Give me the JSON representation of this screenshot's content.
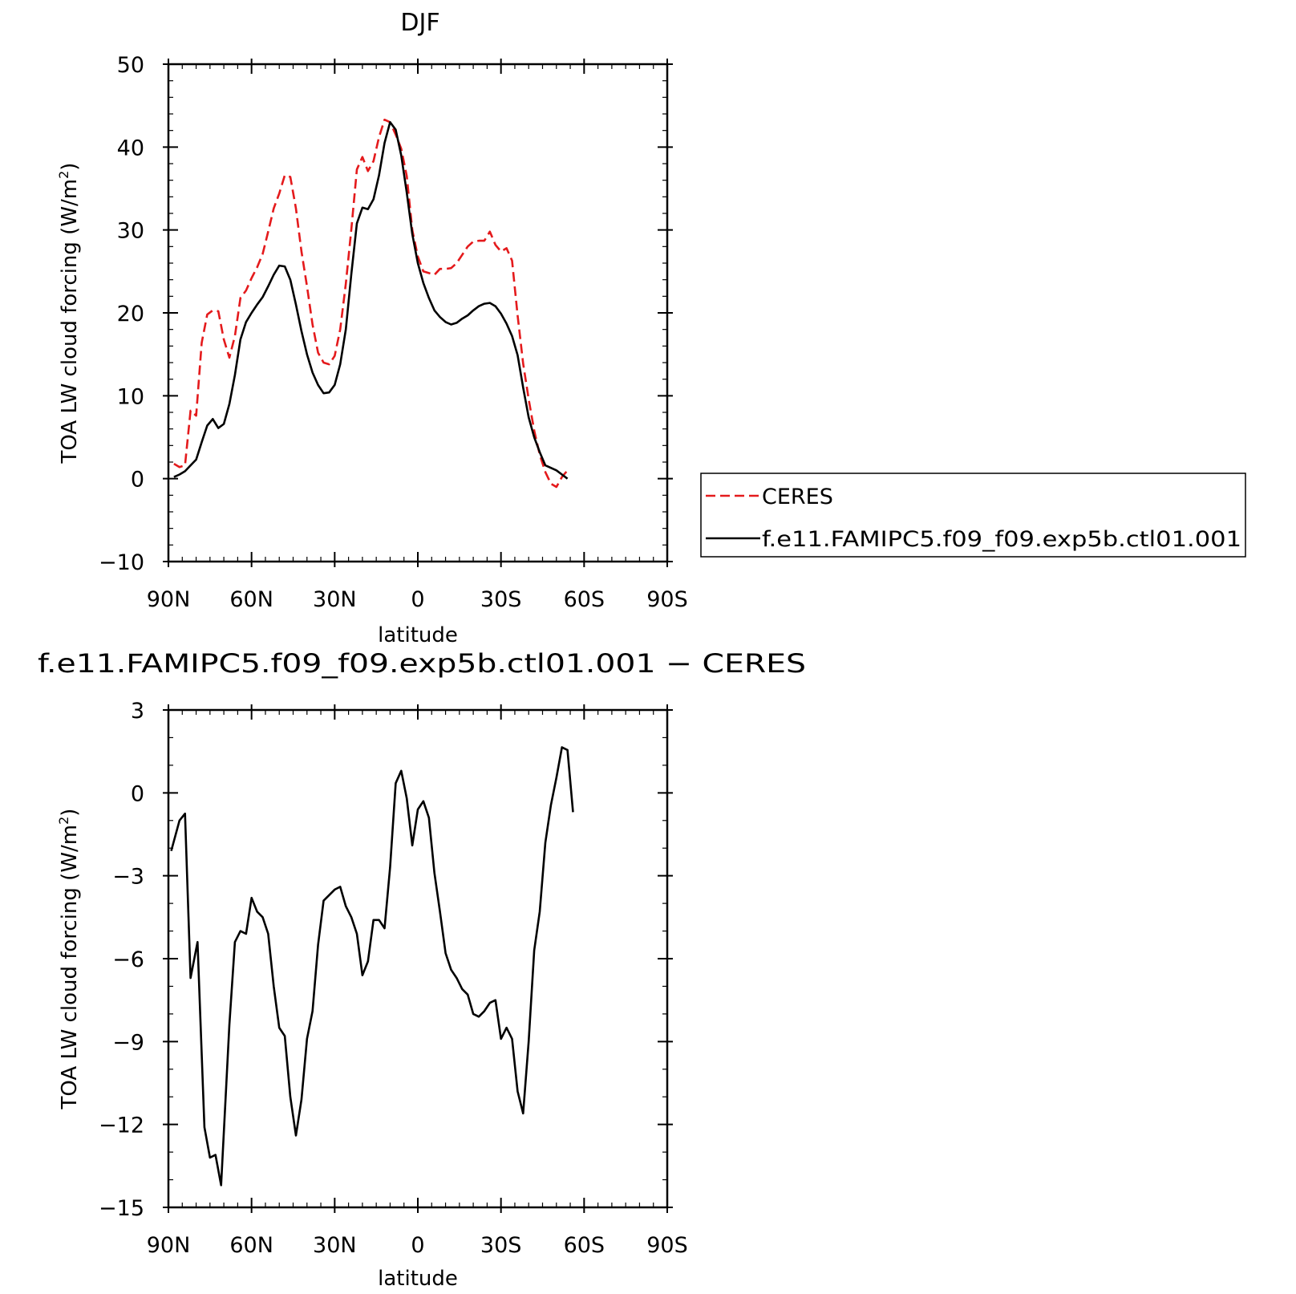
{
  "chart_data": [
    {
      "type": "line",
      "title": "DJF",
      "xlabel": "latitude",
      "ylabel": "TOA LW cloud forcing (W/m",
      "ylabel_sup": "2",
      "ylabel_close": ")",
      "xlim": [
        -90,
        90
      ],
      "ylim": [
        -10,
        50
      ],
      "xticks": [
        {
          "value": -90,
          "label": "90N"
        },
        {
          "value": -60,
          "label": "60N"
        },
        {
          "value": -30,
          "label": "30N"
        },
        {
          "value": 0,
          "label": "0"
        },
        {
          "value": 30,
          "label": "30S"
        },
        {
          "value": 60,
          "label": "60S"
        },
        {
          "value": 90,
          "label": "90S"
        }
      ],
      "yticks": [
        {
          "value": -10,
          "label": "−10"
        },
        {
          "value": 0,
          "label": "0"
        },
        {
          "value": 10,
          "label": "10"
        },
        {
          "value": 20,
          "label": "20"
        },
        {
          "value": 30,
          "label": "30"
        },
        {
          "value": 40,
          "label": "40"
        },
        {
          "value": 50,
          "label": "50"
        }
      ],
      "legend": {
        "position": "right"
      },
      "series": [
        {
          "name": "CERES",
          "color": "#e41a1c",
          "dash": true,
          "points": [
            [
              -88,
              1.8
            ],
            [
              -86,
              1.4
            ],
            [
              -84,
              1.6
            ],
            [
              -82,
              8.2
            ],
            [
              -80,
              7.6
            ],
            [
              -78,
              16.4
            ],
            [
              -76,
              19.8
            ],
            [
              -74,
              20.3
            ],
            [
              -72,
              20.2
            ],
            [
              -70,
              16.8
            ],
            [
              -68,
              14.6
            ],
            [
              -66,
              17.2
            ],
            [
              -64,
              21.8
            ],
            [
              -62,
              22.7
            ],
            [
              -60,
              24.2
            ],
            [
              -58,
              25.5
            ],
            [
              -56,
              27.1
            ],
            [
              -54,
              29.8
            ],
            [
              -52,
              32.6
            ],
            [
              -50,
              34.4
            ],
            [
              -48,
              36.6
            ],
            [
              -46,
              36.4
            ],
            [
              -44,
              32.6
            ],
            [
              -42,
              27.4
            ],
            [
              -40,
              23.2
            ],
            [
              -38,
              18.6
            ],
            [
              -36,
              15.2
            ],
            [
              -34,
              14.0
            ],
            [
              -32,
              13.8
            ],
            [
              -30,
              14.8
            ],
            [
              -28,
              18.0
            ],
            [
              -26,
              23.5
            ],
            [
              -24,
              30.1
            ],
            [
              -22,
              37.3
            ],
            [
              -20,
              38.8
            ],
            [
              -18,
              37.1
            ],
            [
              -16,
              38.3
            ],
            [
              -14,
              41.2
            ],
            [
              -12,
              43.3
            ],
            [
              -10,
              43.0
            ],
            [
              -8,
              41.5
            ],
            [
              -6,
              39.8
            ],
            [
              -4,
              36.5
            ],
            [
              -2,
              30.0
            ],
            [
              0,
              26.8
            ],
            [
              2,
              25.0
            ],
            [
              4,
              24.8
            ],
            [
              6,
              24.6
            ],
            [
              8,
              25.3
            ],
            [
              10,
              25.3
            ],
            [
              12,
              25.4
            ],
            [
              14,
              26.0
            ],
            [
              16,
              27.0
            ],
            [
              18,
              28.0
            ],
            [
              20,
              28.6
            ],
            [
              22,
              28.7
            ],
            [
              24,
              28.7
            ],
            [
              26,
              29.8
            ],
            [
              28,
              28.2
            ],
            [
              30,
              27.4
            ],
            [
              32,
              27.8
            ],
            [
              34,
              26.3
            ],
            [
              36,
              19.7
            ],
            [
              38,
              13.9
            ],
            [
              40,
              9.6
            ],
            [
              42,
              5.8
            ],
            [
              44,
              2.9
            ],
            [
              46,
              0.8
            ],
            [
              48,
              -0.6
            ],
            [
              50,
              -1.0
            ],
            [
              52,
              0.2
            ],
            [
              54,
              1.0
            ]
          ]
        },
        {
          "name": "f.e11.FAMIPC5.f09_f09.exp5b.ctl01.001",
          "color": "#000000",
          "dash": false,
          "points": [
            [
              -88,
              0.2
            ],
            [
              -86,
              0.5
            ],
            [
              -84,
              0.9
            ],
            [
              -82,
              1.6
            ],
            [
              -80,
              2.3
            ],
            [
              -78,
              4.4
            ],
            [
              -76,
              6.4
            ],
            [
              -74,
              7.2
            ],
            [
              -72,
              6.1
            ],
            [
              -70,
              6.6
            ],
            [
              -68,
              9.0
            ],
            [
              -66,
              12.5
            ],
            [
              -64,
              16.8
            ],
            [
              -62,
              18.9
            ],
            [
              -60,
              20.0
            ],
            [
              -58,
              21.0
            ],
            [
              -56,
              21.9
            ],
            [
              -54,
              23.2
            ],
            [
              -52,
              24.6
            ],
            [
              -50,
              25.7
            ],
            [
              -48,
              25.6
            ],
            [
              -46,
              24.0
            ],
            [
              -44,
              21.0
            ],
            [
              -42,
              17.8
            ],
            [
              -40,
              15.0
            ],
            [
              -38,
              12.8
            ],
            [
              -36,
              11.3
            ],
            [
              -34,
              10.3
            ],
            [
              -32,
              10.4
            ],
            [
              -30,
              11.3
            ],
            [
              -28,
              13.8
            ],
            [
              -26,
              18.0
            ],
            [
              -24,
              24.7
            ],
            [
              -22,
              30.8
            ],
            [
              -20,
              32.7
            ],
            [
              -18,
              32.5
            ],
            [
              -16,
              33.7
            ],
            [
              -14,
              36.6
            ],
            [
              -12,
              40.5
            ],
            [
              -10,
              43.0
            ],
            [
              -8,
              42.1
            ],
            [
              -6,
              39.0
            ],
            [
              -4,
              34.5
            ],
            [
              -2,
              29.5
            ],
            [
              0,
              26.0
            ],
            [
              2,
              23.6
            ],
            [
              4,
              21.8
            ],
            [
              6,
              20.3
            ],
            [
              8,
              19.5
            ],
            [
              10,
              18.9
            ],
            [
              12,
              18.6
            ],
            [
              14,
              18.8
            ],
            [
              16,
              19.3
            ],
            [
              18,
              19.7
            ],
            [
              20,
              20.3
            ],
            [
              22,
              20.8
            ],
            [
              24,
              21.1
            ],
            [
              26,
              21.2
            ],
            [
              28,
              20.8
            ],
            [
              30,
              19.9
            ],
            [
              32,
              18.7
            ],
            [
              34,
              17.2
            ],
            [
              36,
              14.9
            ],
            [
              38,
              11.0
            ],
            [
              40,
              7.4
            ],
            [
              42,
              5.0
            ],
            [
              44,
              3.2
            ],
            [
              46,
              1.6
            ],
            [
              48,
              1.3
            ],
            [
              50,
              1.0
            ],
            [
              52,
              0.5
            ],
            [
              54,
              0.0
            ]
          ]
        }
      ]
    },
    {
      "type": "line",
      "title": "f.e11.FAMIPC5.f09_f09.exp5b.ctl01.001 − CERES",
      "xlabel": "latitude",
      "ylabel": "TOA LW cloud forcing (W/m",
      "ylabel_sup": "2",
      "ylabel_close": ")",
      "xlim": [
        -90,
        90
      ],
      "ylim": [
        -15,
        3
      ],
      "xticks": [
        {
          "value": -90,
          "label": "90N"
        },
        {
          "value": -60,
          "label": "60N"
        },
        {
          "value": -30,
          "label": "30N"
        },
        {
          "value": 0,
          "label": "0"
        },
        {
          "value": 30,
          "label": "30S"
        },
        {
          "value": 60,
          "label": "60S"
        },
        {
          "value": 90,
          "label": "90S"
        }
      ],
      "yticks": [
        {
          "value": -15,
          "label": "−15"
        },
        {
          "value": -12,
          "label": "−12"
        },
        {
          "value": -9,
          "label": "−9"
        },
        {
          "value": -6,
          "label": "−6"
        },
        {
          "value": -3,
          "label": "−3"
        },
        {
          "value": 0,
          "label": "0"
        },
        {
          "value": 3,
          "label": "3"
        }
      ],
      "series": [
        {
          "color": "#000000",
          "dash": false,
          "points": [
            [
              -89,
              -2.1
            ],
            [
              -86,
              -1.0
            ],
            [
              -84,
              -0.75
            ],
            [
              -82,
              -6.7
            ],
            [
              -79.5,
              -5.4
            ],
            [
              -77,
              -12.1
            ],
            [
              -75,
              -13.2
            ],
            [
              -73,
              -13.1
            ],
            [
              -71,
              -14.2
            ],
            [
              -68,
              -8.4
            ],
            [
              -66,
              -5.4
            ],
            [
              -64,
              -5.0
            ],
            [
              -62,
              -5.1
            ],
            [
              -60,
              -3.8
            ],
            [
              -58,
              -4.3
            ],
            [
              -56,
              -4.5
            ],
            [
              -54,
              -5.1
            ],
            [
              -52,
              -7.0
            ],
            [
              -50,
              -8.5
            ],
            [
              -48,
              -8.8
            ],
            [
              -46,
              -11.0
            ],
            [
              -44,
              -12.4
            ],
            [
              -42,
              -11.1
            ],
            [
              -40,
              -8.9
            ],
            [
              -38,
              -7.9
            ],
            [
              -36,
              -5.5
            ],
            [
              -34,
              -3.9
            ],
            [
              -32,
              -3.7
            ],
            [
              -30,
              -3.5
            ],
            [
              -28,
              -3.4
            ],
            [
              -26,
              -4.1
            ],
            [
              -24,
              -4.5
            ],
            [
              -22,
              -5.1
            ],
            [
              -20,
              -6.6
            ],
            [
              -18,
              -6.1
            ],
            [
              -16,
              -4.6
            ],
            [
              -14,
              -4.6
            ],
            [
              -12,
              -4.9
            ],
            [
              -10,
              -2.7
            ],
            [
              -8,
              0.35
            ],
            [
              -6,
              0.8
            ],
            [
              -4,
              -0.2
            ],
            [
              -2,
              -1.9
            ],
            [
              0,
              -0.6
            ],
            [
              2,
              -0.3
            ],
            [
              4,
              -0.9
            ],
            [
              6,
              -2.9
            ],
            [
              8,
              -4.3
            ],
            [
              10,
              -5.8
            ],
            [
              12,
              -6.4
            ],
            [
              14,
              -6.7
            ],
            [
              16,
              -7.1
            ],
            [
              18,
              -7.3
            ],
            [
              20,
              -8.0
            ],
            [
              22,
              -8.1
            ],
            [
              24,
              -7.9
            ],
            [
              26,
              -7.6
            ],
            [
              28,
              -7.5
            ],
            [
              30,
              -8.9
            ],
            [
              32,
              -8.5
            ],
            [
              34,
              -8.9
            ],
            [
              36,
              -10.8
            ],
            [
              38,
              -11.6
            ],
            [
              40,
              -9.0
            ],
            [
              42,
              -5.7
            ],
            [
              44,
              -4.3
            ],
            [
              46,
              -1.8
            ],
            [
              48,
              -0.45
            ],
            [
              50,
              0.55
            ],
            [
              52,
              1.65
            ],
            [
              54,
              1.55
            ],
            [
              56,
              -0.7
            ]
          ]
        }
      ]
    }
  ]
}
